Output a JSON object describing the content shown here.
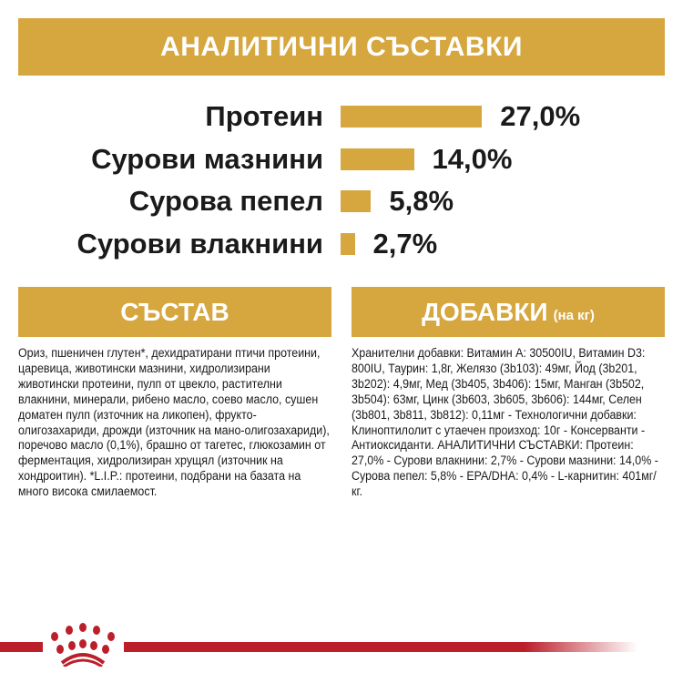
{
  "header": {
    "title": "АНАЛИТИЧНИ СЪСТАВКИ"
  },
  "chart_data": {
    "type": "bar",
    "orientation": "horizontal",
    "categories": [
      "Протеин",
      "Сурови мазнини",
      "Сурова пепел",
      "Сурови влакнини"
    ],
    "values": [
      27.0,
      14.0,
      5.8,
      2.7
    ],
    "labels": [
      "27,0%",
      "14,0%",
      "5,8%",
      "2,7%"
    ],
    "color": "#d6a63f"
  },
  "composition": {
    "title": "СЪСТАВ",
    "text": "Ориз, пшеничен глутен*, дехидратирани птичи протеини, царевица, животински мазнини, хидролизирани животински протеини, пулп от цвекло, растителни влакнини, минерали, рибено масло, соево масло, сушен доматен пулп (източник на ликопен), фрукто-олигозахариди, дрожди (източник на мано-олигозахариди), поречово масло (0,1%), брашно от тагетес, глюкозамин от ферментация, хидролизиран хрущял (източник на хондроитин). *L.I.P.: протеини, подбрани на базата на много висока смилаемост."
  },
  "additives": {
    "title": "ДОБАВКИ",
    "unit": "(на кг)",
    "text": "Хранителни добавки: Витамин А: 30500IU, Витамин D3: 800IU, Таурин: 1,8г, Желязо (3b103): 49мг, Йод (3b201, 3b202): 4,9мг, Мед (3b405, 3b406): 15мг, Манган (3b502, 3b504): 63мг, Цинк (3b603, 3b605, 3b606): 144мг, Селен (3b801, 3b811, 3b812): 0,11мг - Технологични добавки: Клиноптилолит с утаечен произход: 10г - Консерванти - Антиоксиданти. АНАЛИТИЧНИ СЪСТАВКИ: Протеин: 27,0% - Сурови влакнини: 2,7% - Сурови мазнини: 14,0% - Сурова пепел: 5,8% - EPA/DHA: 0,4% - L-карнитин: 401мг/кг."
  },
  "colors": {
    "gold": "#d6a63f",
    "brand_red": "#bb1f2a"
  },
  "logo": {
    "name": "crown-logo-icon"
  }
}
